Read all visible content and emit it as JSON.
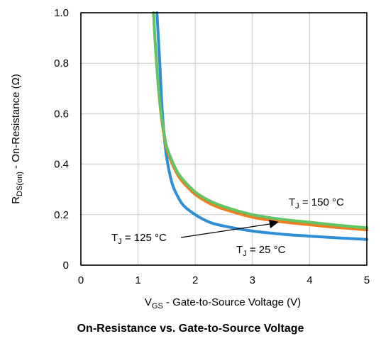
{
  "chart_data": {
    "type": "line",
    "title": "On-Resistance vs. Gate-to-Source Voltage",
    "xlabel": {
      "main": "V",
      "sub": "GS",
      "rest": " - Gate-to-Source Voltage (V)"
    },
    "ylabel": {
      "main": "R",
      "sub": "DS(on)",
      "rest": " - On-Resistance (Ω)"
    },
    "xlim": [
      0,
      5
    ],
    "ylim": [
      0,
      1.0
    ],
    "xticks": [
      "0",
      "1",
      "2",
      "3",
      "4",
      "5"
    ],
    "yticks": [
      "0",
      "0.2",
      "0.4",
      "0.6",
      "0.8",
      "1.0"
    ],
    "grid": true,
    "series": [
      {
        "name": "T_J = 25 °C",
        "color": "#2f8fd6",
        "x": [
          1.33,
          1.38,
          1.42,
          1.47,
          1.52,
          1.6,
          1.7,
          1.8,
          2.0,
          2.25,
          2.5,
          3.0,
          3.5,
          4.0,
          4.5,
          5.0
        ],
        "y": [
          1.0,
          0.8,
          0.62,
          0.48,
          0.4,
          0.32,
          0.27,
          0.235,
          0.2,
          0.17,
          0.155,
          0.135,
          0.123,
          0.115,
          0.108,
          0.102
        ]
      },
      {
        "name": "T_J = 125 °C",
        "color": "#ef7d22",
        "x": [
          1.27,
          1.3,
          1.35,
          1.4,
          1.45,
          1.5,
          1.6,
          1.7,
          1.8,
          2.0,
          2.25,
          2.5,
          3.0,
          3.5,
          4.0,
          4.5,
          5.0
        ],
        "y": [
          1.0,
          0.88,
          0.72,
          0.6,
          0.52,
          0.46,
          0.4,
          0.355,
          0.325,
          0.28,
          0.245,
          0.222,
          0.19,
          0.172,
          0.16,
          0.149,
          0.14
        ]
      },
      {
        "name": "T_J = 150 °C",
        "color": "#62c462",
        "x": [
          1.27,
          1.3,
          1.35,
          1.4,
          1.45,
          1.5,
          1.6,
          1.7,
          1.8,
          2.0,
          2.25,
          2.5,
          3.0,
          3.5,
          4.0,
          4.5,
          5.0
        ],
        "y": [
          1.0,
          0.88,
          0.72,
          0.61,
          0.53,
          0.47,
          0.41,
          0.365,
          0.335,
          0.29,
          0.255,
          0.232,
          0.2,
          0.182,
          0.17,
          0.158,
          0.148
        ]
      }
    ],
    "annotations": [
      {
        "main": "T",
        "sub": "J",
        "rest": " = 150 °C",
        "series": 2
      },
      {
        "main": "T",
        "sub": "J",
        "rest": " = 125 °C",
        "series": 1
      },
      {
        "main": "T",
        "sub": "J",
        "rest": " = 25 °C",
        "series": 0
      }
    ]
  }
}
